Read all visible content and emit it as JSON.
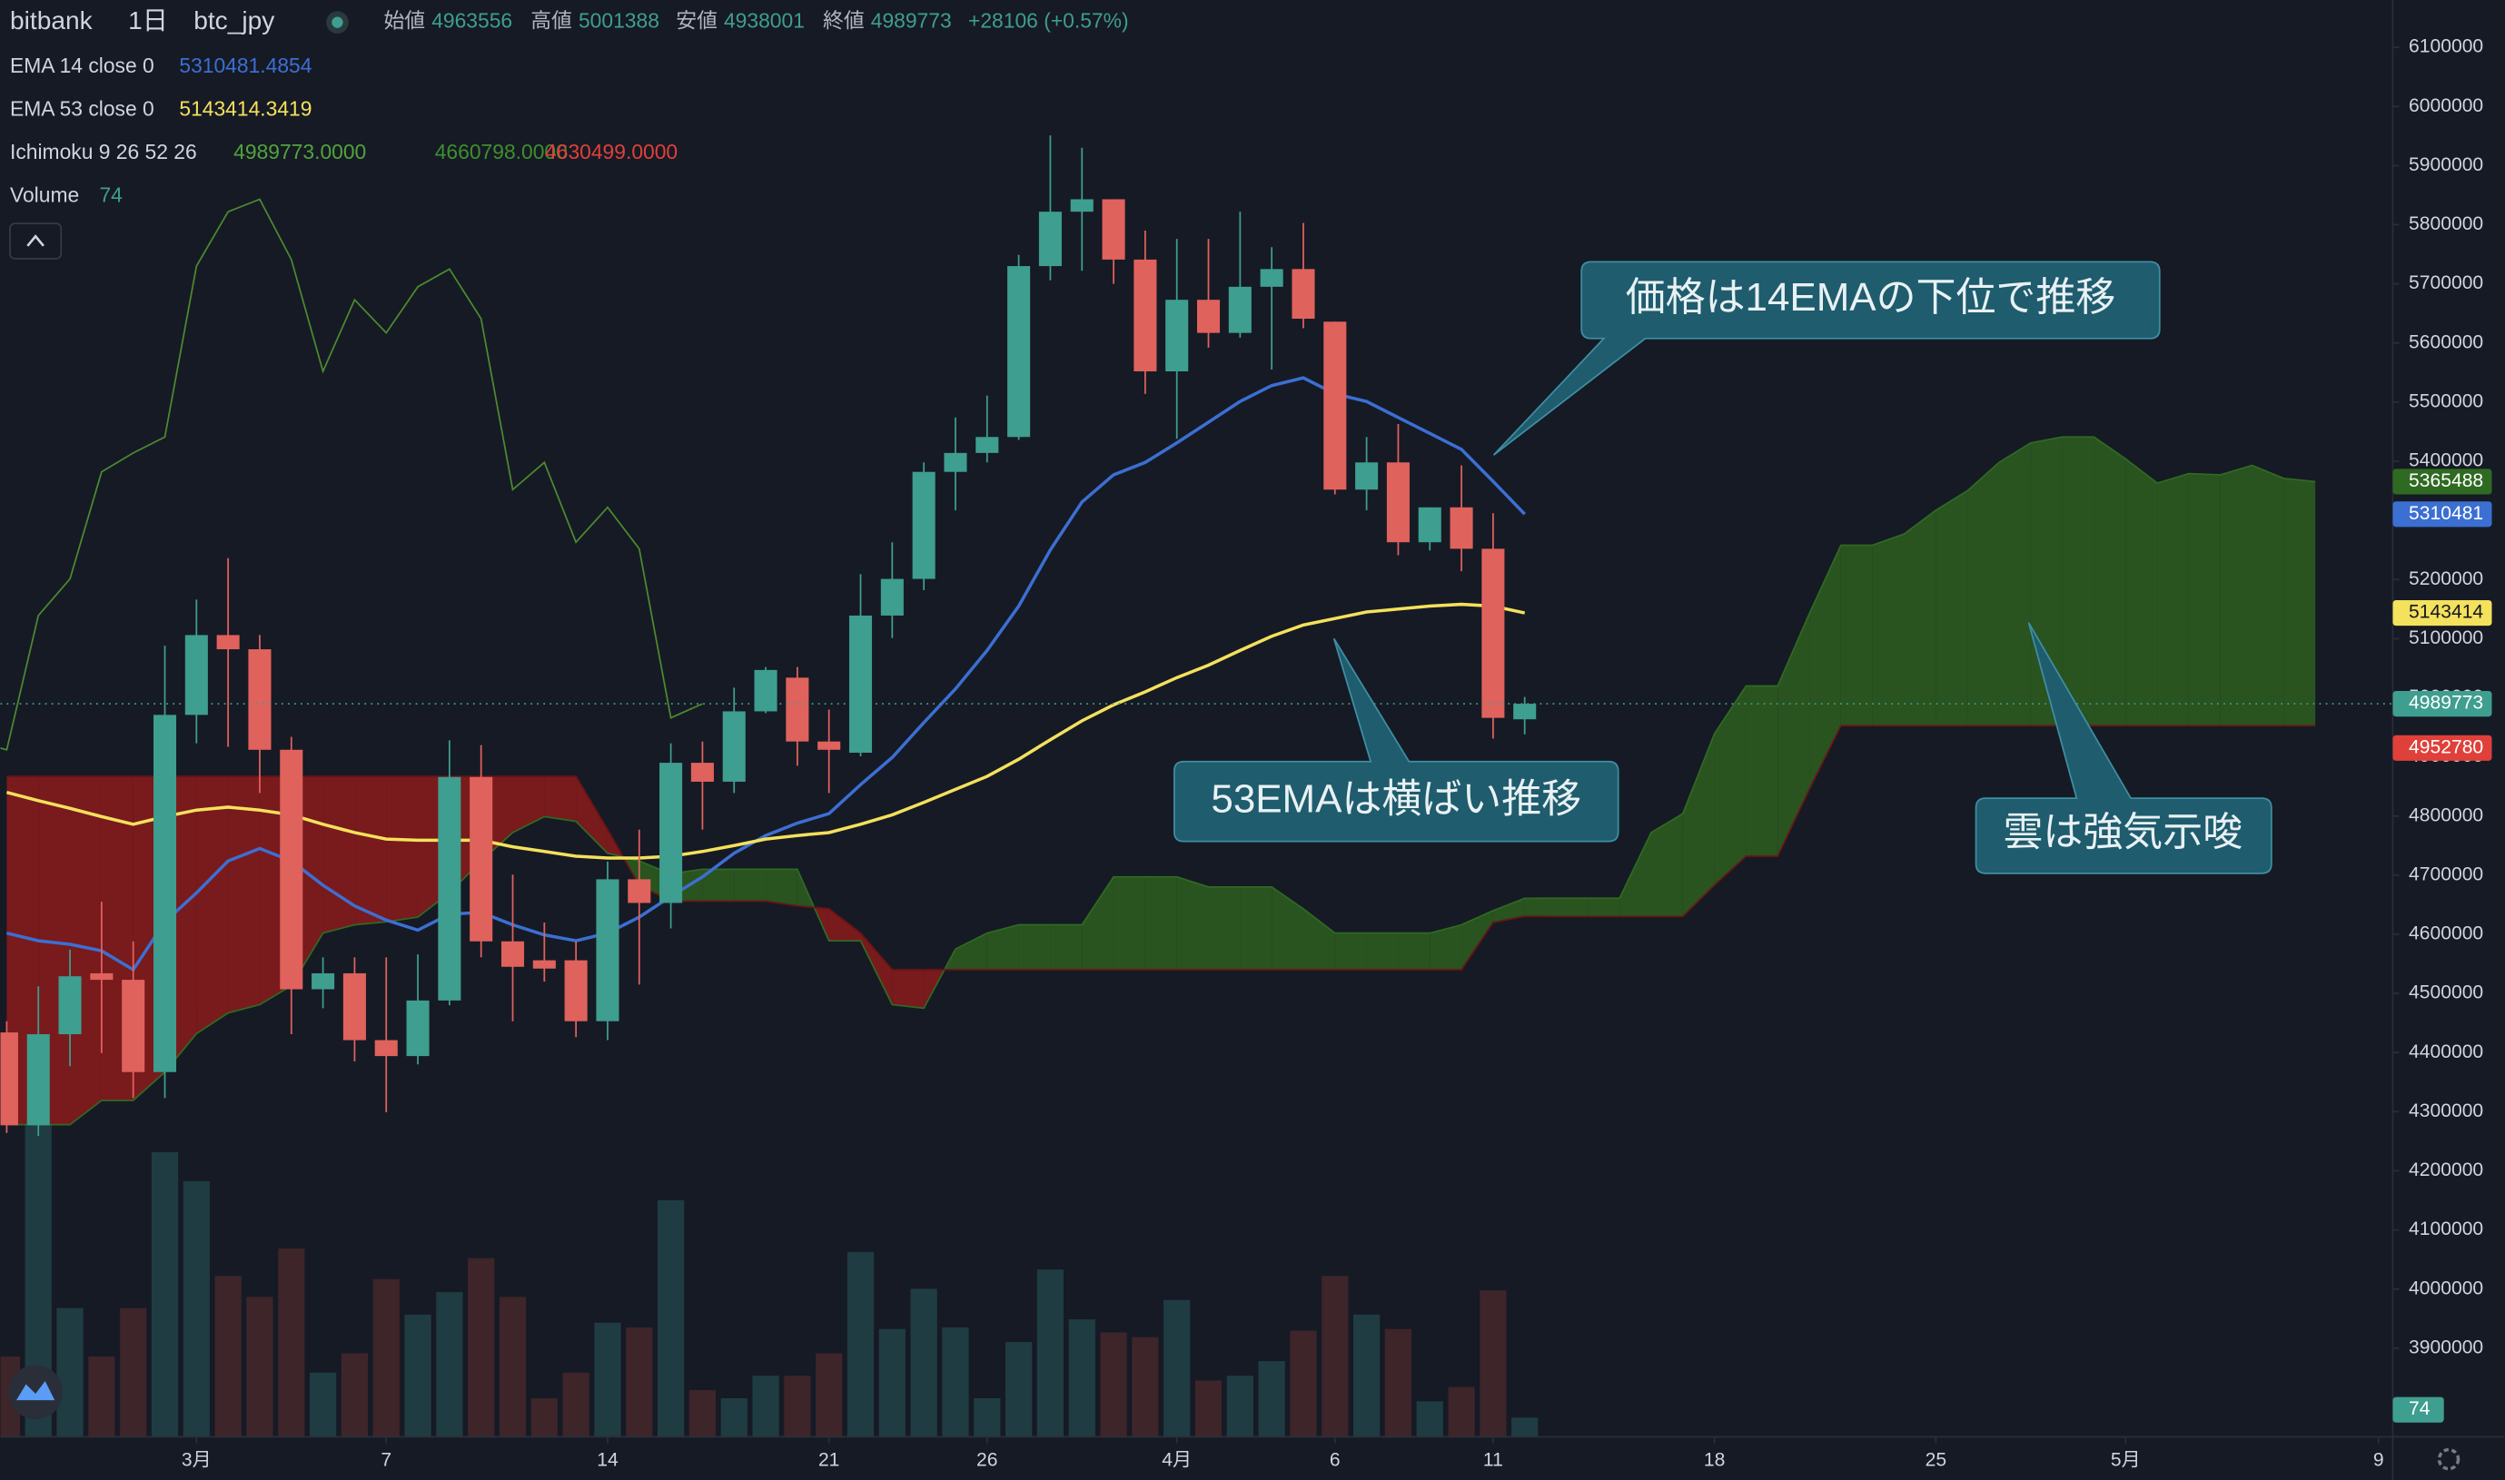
{
  "header": {
    "exchange": "bitbank",
    "interval": "1日",
    "symbol": "btc_jpy",
    "open_label": "始値",
    "high_label": "高値",
    "low_label": "安値",
    "close_label": "終値",
    "change": "+28106 (+0.57%)"
  },
  "chart_data": {
    "type": "candlestick",
    "xlim": [
      -0.2,
      75.45
    ],
    "xticks": [
      {
        "value": 6,
        "label": "3月"
      },
      {
        "value": 12,
        "label": "7"
      },
      {
        "value": 19,
        "label": "14"
      },
      {
        "value": 26,
        "label": "21"
      },
      {
        "value": 31,
        "label": "26"
      },
      {
        "value": 37,
        "label": "4月"
      },
      {
        "value": 42,
        "label": "6"
      },
      {
        "value": 47,
        "label": "11"
      },
      {
        "value": 54,
        "label": "18"
      },
      {
        "value": 61,
        "label": "25"
      },
      {
        "value": 67,
        "label": "5月"
      },
      {
        "value": 75,
        "label": "9"
      }
    ],
    "ylim": [
      3750000,
      6180000
    ],
    "yticks": [
      3900000,
      4000000,
      4100000,
      4200000,
      4300000,
      4400000,
      4500000,
      4600000,
      4700000,
      4800000,
      4900000,
      5000000,
      5100000,
      5200000,
      5400000,
      5500000,
      5600000,
      5700000,
      5800000,
      5900000,
      6000000,
      6100000
    ],
    "up_color": "#3e9e8f",
    "down_color": "#e0625c",
    "candles": {
      "open": [
        4434000,
        4277000,
        4431000,
        4534000,
        4523000,
        4367000,
        4971000,
        5106000,
        5082000,
        4912000,
        4507000,
        4534000,
        4421000,
        4394000,
        4488000,
        4866000,
        4588000,
        4556000,
        4556000,
        4453000,
        4693000,
        4653000,
        4890000,
        4858000,
        4977000,
        5034000,
        4926000,
        4907000,
        5139000,
        5201000,
        5382000,
        5414000,
        5441000,
        5730000,
        5822000,
        5843000,
        5741000,
        5552000,
        5673000,
        5617000,
        5695000,
        5725000,
        5636000,
        5352000,
        5398000,
        5263000,
        5322000,
        5252000,
        4963556
      ],
      "high": [
        4453000,
        4512000,
        4574000,
        4655000,
        4588000,
        5088000,
        5166000,
        5236000,
        5106000,
        4934000,
        4561000,
        4561000,
        4561000,
        4566000,
        4928000,
        4920000,
        4701000,
        4620000,
        4588000,
        4723000,
        4777000,
        4923000,
        4926000,
        5017000,
        5052000,
        5052000,
        4980000,
        5209000,
        5263000,
        5398000,
        5474000,
        5511000,
        5749000,
        5951000,
        5930000,
        5843000,
        5790000,
        5776000,
        5776000,
        5822000,
        5762000,
        5803000,
        5636000,
        5441000,
        5463000,
        5322000,
        5393000,
        5312000,
        5001388
      ],
      "low": [
        4264000,
        4259000,
        4377000,
        4399000,
        4323000,
        4323000,
        4923000,
        4917000,
        4839000,
        4431000,
        4475000,
        4385000,
        4299000,
        4380000,
        4480000,
        4561000,
        4453000,
        4520000,
        4426000,
        4421000,
        4515000,
        4610000,
        4777000,
        4839000,
        4974000,
        4885000,
        4839000,
        4901000,
        5101000,
        5182000,
        5317000,
        5398000,
        5436000,
        5706000,
        5722000,
        5700000,
        5514000,
        5438000,
        5592000,
        5609000,
        5555000,
        5625000,
        5344000,
        5317000,
        5241000,
        5249000,
        5214000,
        4931000,
        4938001
      ],
      "close": [
        4277000,
        4431000,
        4529000,
        4523000,
        4367000,
        4971000,
        5106000,
        5082000,
        4912000,
        4507000,
        4534000,
        4421000,
        4394000,
        4488000,
        4866000,
        4588000,
        4545000,
        4542000,
        4453000,
        4693000,
        4653000,
        4890000,
        4858000,
        4977000,
        5047000,
        4926000,
        4912000,
        5139000,
        5201000,
        5382000,
        5414000,
        5441000,
        5730000,
        5822000,
        5843000,
        5741000,
        5552000,
        5673000,
        5617000,
        5695000,
        5725000,
        5641000,
        5352000,
        5398000,
        5263000,
        5322000,
        5252000,
        4966000,
        4989773
      ]
    },
    "series": [
      {
        "name": "EMA 14 close 0",
        "color": "#3c6fd2",
        "badge": "5310481",
        "values": [
          4602000,
          4589000,
          4583000,
          4572000,
          4540000,
          4621000,
          4670000,
          4724000,
          4745000,
          4724000,
          4683000,
          4648000,
          4624000,
          4607000,
          4634000,
          4637000,
          4616000,
          4599000,
          4589000,
          4602000,
          4629000,
          4664000,
          4697000,
          4737000,
          4767000,
          4788000,
          4804000,
          4853000,
          4899000,
          4958000,
          5015000,
          5080000,
          5155000,
          5250000,
          5331000,
          5377000,
          5398000,
          5431000,
          5466000,
          5501000,
          5528000,
          5541000,
          5514000,
          5501000,
          5474000,
          5447000,
          5420000,
          5366000,
          5310481.4854
        ]
      },
      {
        "name": "EMA 53 close 0",
        "color": "#f4e15c",
        "badge": "5143414",
        "values": [
          4840000,
          4826000,
          4813000,
          4799000,
          4786000,
          4799000,
          4810000,
          4815000,
          4810000,
          4802000,
          4786000,
          4772000,
          4761000,
          4759000,
          4759000,
          4759000,
          4748000,
          4740000,
          4732000,
          4729000,
          4729000,
          4732000,
          4740000,
          4750000,
          4761000,
          4767000,
          4772000,
          4786000,
          4802000,
          4823000,
          4845000,
          4867000,
          4896000,
          4929000,
          4961000,
          4988000,
          5010000,
          5034000,
          5055000,
          5080000,
          5104000,
          5123000,
          5134000,
          5145000,
          5150000,
          5155000,
          5158000,
          5155000,
          5143414.3419
        ]
      }
    ],
    "ichimoku": {
      "name": "Ichimoku 9 26 52 26",
      "legend_values": [
        "4989773.0000",
        "4660798.0000",
        "4630499.0000"
      ],
      "legend_colors": [
        "#52a43a",
        "#3f8f2e",
        "#e0403a"
      ],
      "bull_color": "#2d5e1e",
      "bear_color": "#8b1b1b",
      "span_a_color": "#2f6a22",
      "span_b_color": "#6b1414",
      "lagging_color": "#4a8a2f",
      "lagging_shift": 26,
      "span_a": [
        4278000,
        4278000,
        4278000,
        4319000,
        4319000,
        4367000,
        4432000,
        4467000,
        4481000,
        4513000,
        4602000,
        4616000,
        4621000,
        4629000,
        4670000,
        4724000,
        4772000,
        4799000,
        4791000,
        4737000,
        4724000,
        4702000,
        4710000,
        4710000,
        4710000,
        4710000,
        4589000,
        4589000,
        4481000,
        4475000,
        4575000,
        4602000,
        4616000,
        4616000,
        4616000,
        4697000,
        4697000,
        4697000,
        4680000,
        4680000,
        4680000,
        4643000,
        4602000,
        4602000,
        4602000,
        4602000,
        4616000,
        4640000,
        4660798,
        4661000,
        4661000,
        4661000,
        4772000,
        4804000,
        4939000,
        5020000,
        5020000,
        5142000,
        5258000,
        5258000,
        5277000,
        5317000,
        5350000,
        5398000,
        5431000,
        5441000,
        5441000,
        5404000,
        5363000,
        5379000,
        5377000,
        5393000,
        5371000,
        5365488
      ],
      "span_b": [
        4867000,
        4867000,
        4867000,
        4867000,
        4867000,
        4867000,
        4867000,
        4867000,
        4867000,
        4867000,
        4867000,
        4867000,
        4867000,
        4867000,
        4867000,
        4867000,
        4867000,
        4867000,
        4867000,
        4777000,
        4683000,
        4656000,
        4656000,
        4656000,
        4656000,
        4648000,
        4643000,
        4602000,
        4540000,
        4540000,
        4540000,
        4540000,
        4540000,
        4540000,
        4540000,
        4540000,
        4540000,
        4540000,
        4540000,
        4540000,
        4540000,
        4540000,
        4540000,
        4540000,
        4540000,
        4540000,
        4540000,
        4620000,
        4630499,
        4630000,
        4630000,
        4630000,
        4630000,
        4630000,
        4683000,
        4732000,
        4732000,
        4845000,
        4952780,
        4952780,
        4952780,
        4952780,
        4952780,
        4952780,
        4952780,
        4952780,
        4952780,
        4952780,
        4952780,
        4952780,
        4952780,
        4952780,
        4952780,
        4952780
      ]
    },
    "volume": {
      "name": "Volume",
      "ylim": [
        0,
        5500
      ],
      "up_color": "#1f3c42",
      "down_color": "#3d2529",
      "values": [
        308,
        1201,
        493,
        308,
        493,
        1090,
        979,
        616,
        536,
        721,
        246,
        320,
        604,
        468,
        554,
        684,
        536,
        148,
        246,
        437,
        419,
        906,
        179,
        148,
        234,
        234,
        320,
        708,
        413,
        567,
        419,
        148,
        363,
        641,
        450,
        400,
        382,
        524,
        216,
        234,
        290,
        407,
        616,
        468,
        413,
        136,
        191,
        561,
        74
      ]
    },
    "annotations": [
      "価格は14EMAの下位で推移",
      "53EMAは横ばい推移",
      "雲は強気示唆"
    ]
  }
}
